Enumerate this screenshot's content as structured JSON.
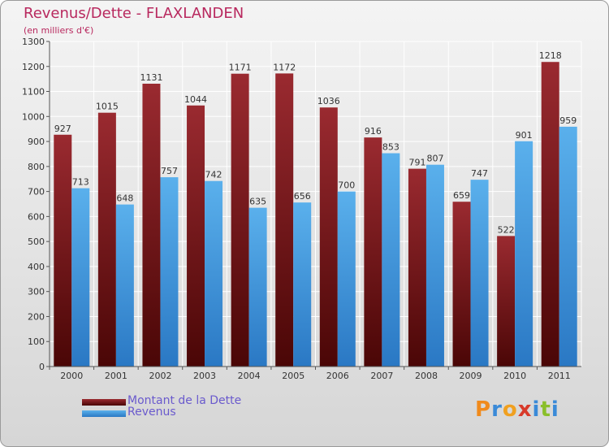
{
  "title": "Revenus/Dette - FLAXLANDEN",
  "subtitle": "(en milliers d'€)",
  "legend": {
    "debt_label": "Montant de la Dette",
    "revenue_label": "Revenus"
  },
  "brand": {
    "letters": [
      "P",
      "r",
      "o",
      "x",
      "i",
      "t",
      "i"
    ],
    "colors": [
      "#f08a1c",
      "#3a8ad8",
      "#f0a020",
      "#d83a2a",
      "#3a8ad8",
      "#8abf2a",
      "#3a8ad8"
    ]
  },
  "colors": {
    "debt": "#7a1a1e",
    "revenue": "#4aa0e0",
    "title": "#b8285e",
    "legend_text": "#6a5acd"
  },
  "chart_data": {
    "type": "bar",
    "categories": [
      "2000",
      "2001",
      "2002",
      "2003",
      "2004",
      "2005",
      "2006",
      "2007",
      "2008",
      "2009",
      "2010",
      "2011"
    ],
    "series": [
      {
        "name": "Montant de la Dette",
        "values": [
          927,
          1015,
          1131,
          1044,
          1171,
          1172,
          1036,
          916,
          791,
          659,
          522,
          1218
        ]
      },
      {
        "name": "Revenus",
        "values": [
          713,
          648,
          757,
          742,
          635,
          656,
          700,
          853,
          807,
          747,
          901,
          959
        ]
      }
    ],
    "title": "Revenus/Dette - FLAXLANDEN",
    "ylim": [
      0,
      1300
    ],
    "yticks": [
      0,
      100,
      200,
      300,
      400,
      500,
      600,
      700,
      800,
      900,
      1000,
      1100,
      1200,
      1300
    ],
    "grid": true
  }
}
